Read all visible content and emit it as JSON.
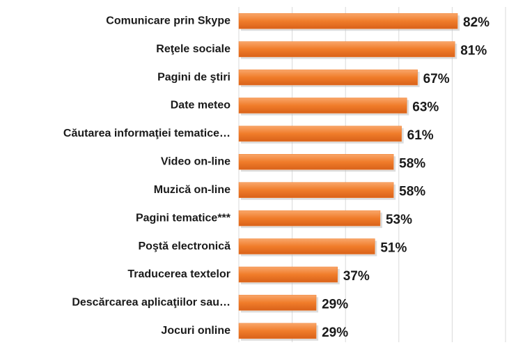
{
  "chart_data": {
    "type": "hbar",
    "categories": [
      "Comunicare prin Skype",
      "Reţele sociale",
      "Pagini de ştiri",
      "Date meteo",
      "Căutarea informaţiei tematice…",
      "Video on-line",
      "Muzică on-line",
      "Pagini tematice***",
      "Poştă electronică",
      "Traducerea textelor",
      "Descărcarea aplicaţiilor sau…",
      "Jocuri online"
    ],
    "values": [
      82,
      81,
      67,
      63,
      61,
      58,
      58,
      53,
      51,
      37,
      29,
      29
    ],
    "value_labels": [
      "82%",
      "81%",
      "67%",
      "63%",
      "61%",
      "58%",
      "58%",
      "53%",
      "51%",
      "37%",
      "29%",
      "29%"
    ],
    "color": "#f07c2a",
    "xlim": [
      0,
      100
    ],
    "xticks": [
      0,
      20,
      40,
      60,
      80,
      100
    ],
    "grid": true
  }
}
